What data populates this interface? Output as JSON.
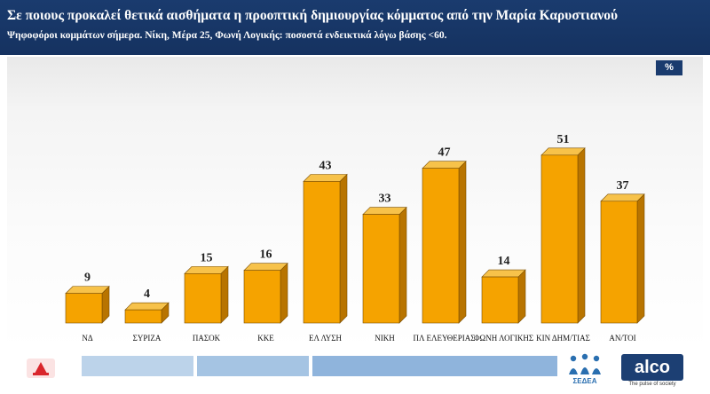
{
  "header": {
    "title": "Σε ποιους προκαλεί θετικά αισθήματα η προοπτική δημιουργίας κόμματος από την Μαρία Καρυστιανού",
    "subtitle": "Ψηφοφόροι κομμάτων σήμερα. Νίκη, Μέρα 25, Φωνή Λογικής: ποσοστά ενδεικτικά λόγω βάσης <60."
  },
  "unit_badge": "%",
  "chart_data": {
    "type": "bar",
    "title": "Σε ποιους προκαλεί θετικά αισθήματα η προοπτική δημιουργίας κόμματος από την Μαρία Καρυστιανού",
    "categories": [
      "ΝΔ",
      "ΣΥΡΙΖΑ",
      "ΠΑΣΟΚ",
      "ΚΚΕ",
      "ΕΛ ΛΥΣΗ",
      "ΝΙΚΗ",
      "ΠΛ ΕΛΕΥΘΕΡΙΑΣ",
      "ΦΩΝΗ ΛΟΓΙΚΗΣ",
      "ΚΙΝ ΔΗΜ/ΤΙΑΣ",
      "ΑΝ/ΤΟΙ"
    ],
    "values": [
      9,
      4,
      15,
      16,
      43,
      33,
      47,
      14,
      51,
      37
    ],
    "unit": "%",
    "ylim": [
      0,
      55
    ],
    "bar_color": "#f5a300",
    "grid": false,
    "legend": "none"
  },
  "footer": {
    "sedea_label": "ΣΕΔΕΑ",
    "alco_logo": "alco",
    "alco_tagline": "The pulse of society"
  },
  "colors": {
    "header_bg": "#1a3b6e",
    "bar_front": "#f5a300",
    "bar_top": "#f7c24a",
    "bar_side": "#b87400"
  }
}
